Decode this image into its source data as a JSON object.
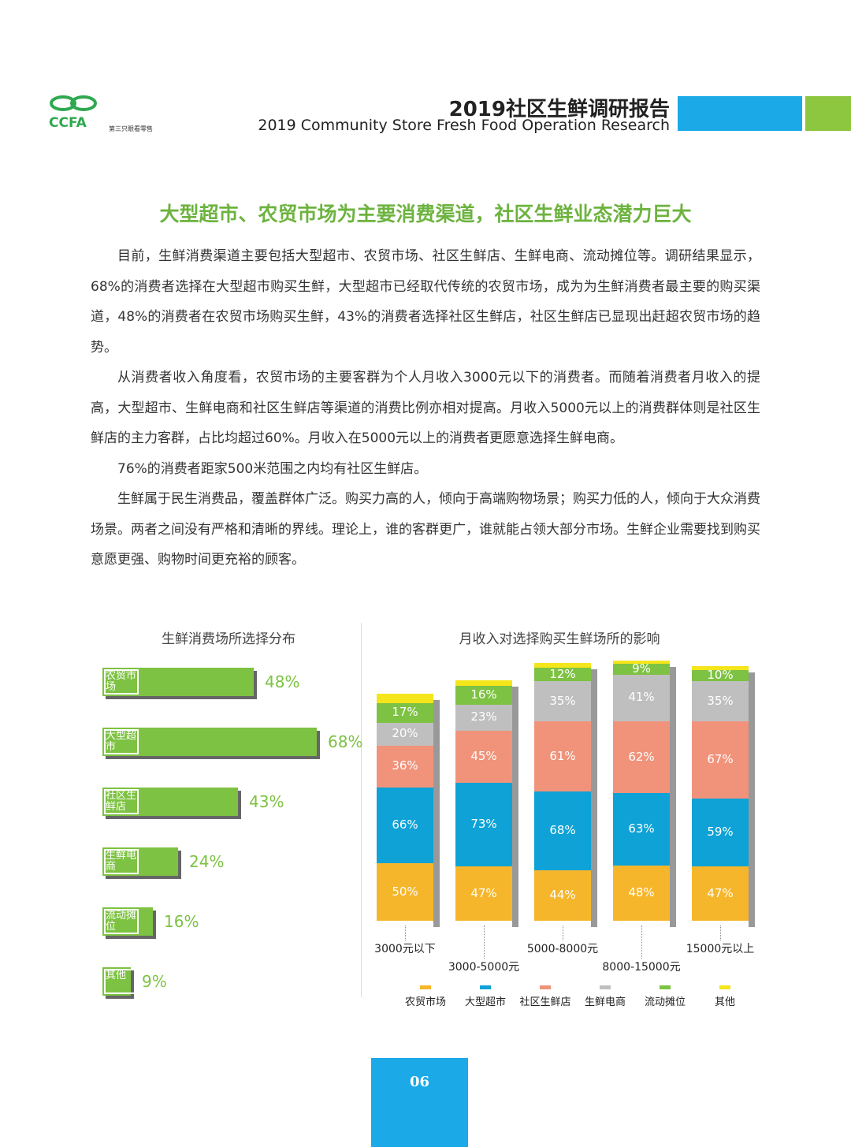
{
  "header": {
    "logo": "CCFA",
    "logo_caption": "第三只眼看零售",
    "title": "2019社区生鲜调研报告",
    "subtitle": "2019 Community Store Fresh Food Operation Research"
  },
  "headline": "大型超市、农贸市场为主要消费渠道，社区生鲜业态潜力巨大",
  "paragraphs": [
    "目前，生鲜消费渠道主要包括大型超市、农贸市场、社区生鲜店、生鲜电商、流动摊位等。调研结果显示，68%的消费者选择在大型超市购买生鲜，大型超市已经取代传统的农贸市场，成为为生鲜消费者最主要的购买渠道，48%的消费者在农贸市场购买生鲜，43%的消费者选择社区生鲜店，社区生鲜店已显现出赶超农贸市场的趋势。",
    "从消费者收入角度看，农贸市场的主要客群为个人月收入3000元以下的消费者。而随着消费者月收入的提高，大型超市、生鲜电商和社区生鲜店等渠道的消费比例亦相对提高。月收入5000元以上的消费群体则是社区生鲜店的主力客群，占比均超过60%。月收入在5000元以上的消费者更愿意选择生鲜电商。",
    "76%的消费者距家500米范围之内均有社区生鲜店。",
    "生鲜属于民生消费品，覆盖群体广泛。购买力高的人，倾向于高端购物场景；购买力低的人，倾向于大众消费场景。两者之间没有严格和清晰的界线。理论上，谁的客群更广，谁就能占领大部分市场。生鲜企业需要找到购买意愿更强、购物时间更充裕的顾客。"
  ],
  "chart_data": [
    {
      "type": "hbar",
      "title": "生鲜消费场所选择分布",
      "categories": [
        "农贸市场",
        "大型超市",
        "社区生鲜店",
        "生鲜电商",
        "流动摊位",
        "其他"
      ],
      "values": [
        48,
        68,
        43,
        24,
        16,
        9
      ],
      "value_labels": [
        "48%",
        "68%",
        "43%",
        "24%",
        "16%",
        "9%"
      ],
      "color": "#7dc242"
    },
    {
      "type": "stacked_bar",
      "title": "月收入对选择购买生鲜场所的影响",
      "categories": [
        "3000元以下",
        "3000-5000元",
        "5000-8000元",
        "8000-15000元",
        "15000元以上"
      ],
      "series": [
        {
          "name": "农贸市场",
          "color": "#f6b62b",
          "values": [
            50,
            47,
            44,
            48,
            47
          ],
          "value_labels": [
            "50%",
            "47%",
            "44%",
            "48%",
            "47%"
          ]
        },
        {
          "name": "大型超市",
          "color": "#0ea2d6",
          "values": [
            66,
            73,
            68,
            63,
            59
          ],
          "value_labels": [
            "66%",
            "73%",
            "68%",
            "63%",
            "59%"
          ]
        },
        {
          "name": "社区生鲜店",
          "color": "#f0937a",
          "values": [
            36,
            45,
            61,
            62,
            67
          ],
          "value_labels": [
            "36%",
            "45%",
            "61%",
            "62%",
            "67%"
          ]
        },
        {
          "name": "生鲜电商",
          "color": "#bfbfbf",
          "values": [
            20,
            23,
            35,
            41,
            35
          ],
          "value_labels": [
            "20%",
            "23%",
            "35%",
            "41%",
            "35%"
          ]
        },
        {
          "name": "流动摊位",
          "color": "#7dc242",
          "values": [
            17,
            16,
            12,
            9,
            10
          ],
          "value_labels": [
            "17%",
            "16%",
            "12%",
            "9%",
            "10%"
          ]
        },
        {
          "name": "其他",
          "color": "#f5e51b",
          "values": [
            8,
            5,
            4,
            3,
            3
          ]
        }
      ]
    }
  ],
  "page_number": "06"
}
